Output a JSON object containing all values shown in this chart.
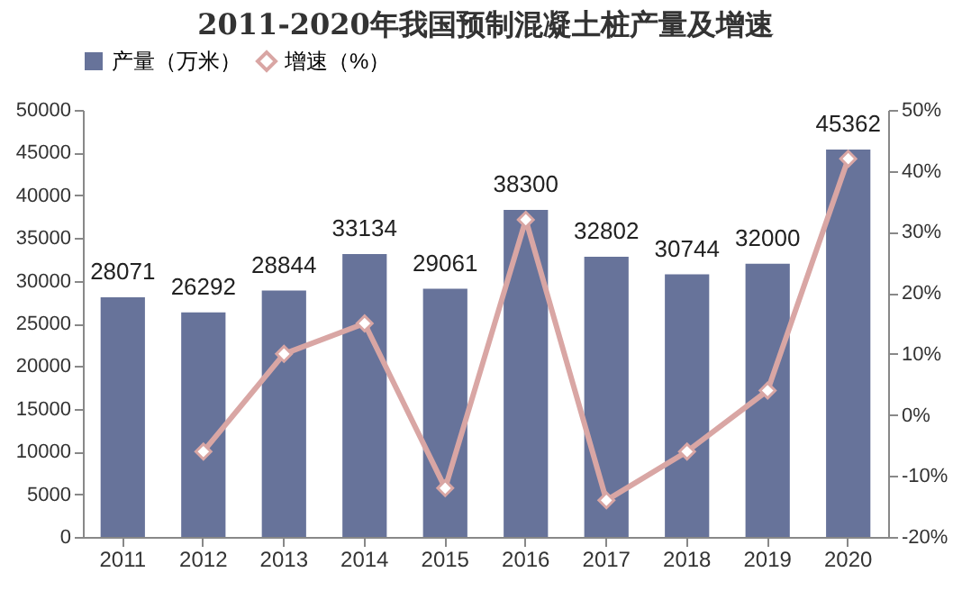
{
  "chart_data": {
    "type": "bar",
    "title": "2011-2020年我国预制混凝土桩产量及增速",
    "categories": [
      "2011",
      "2012",
      "2013",
      "2014",
      "2015",
      "2016",
      "2017",
      "2018",
      "2019",
      "2020"
    ],
    "series": [
      {
        "name": "产量（万米）",
        "color": "#67739a",
        "values": [
          28071,
          26292,
          28844,
          33134,
          29061,
          38300,
          32802,
          30744,
          32000,
          45362
        ],
        "value_labels": [
          "28071",
          "26292",
          "28844",
          "33134",
          "29061",
          "38300",
          "32802",
          "30744",
          "32000",
          "45362"
        ]
      },
      {
        "name": "增速（%）",
        "type": "line",
        "axis": "y2",
        "color": "#d9a6a4",
        "marker": "diamond",
        "values": [
          null,
          -6,
          10,
          15,
          -12,
          32,
          -14,
          -6,
          4,
          42
        ]
      }
    ],
    "legend": "top",
    "ylim": [
      0,
      50000
    ],
    "yticks": [
      0,
      5000,
      10000,
      15000,
      20000,
      25000,
      30000,
      35000,
      40000,
      45000,
      50000
    ],
    "y2lim": [
      -20,
      50
    ],
    "y2ticks": [
      {
        "value": -20,
        "label": "-20%"
      },
      {
        "value": -10,
        "label": "-10%"
      },
      {
        "value": 0,
        "label": "0%"
      },
      {
        "value": 10,
        "label": "10%"
      },
      {
        "value": 20,
        "label": "20%"
      },
      {
        "value": 30,
        "label": "30%"
      },
      {
        "value": 40,
        "label": "40%"
      },
      {
        "value": 50,
        "label": "50%"
      }
    ]
  }
}
